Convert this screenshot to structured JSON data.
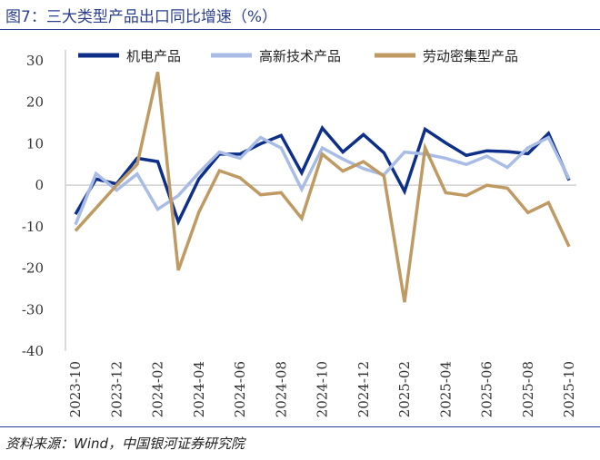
{
  "title": "图7：三大类型产品出口同比增速（%）",
  "source": "资料来源：Wind，中国银河证券研究院",
  "chart_data": {
    "type": "line",
    "title": "图7：三大类型产品出口同比增速（%）",
    "xlabel": "",
    "ylabel": "",
    "ylim": [
      -40,
      30
    ],
    "yticks": [
      30,
      20,
      10,
      0,
      -10,
      -20,
      -30,
      -40
    ],
    "x": [
      "2023-10",
      "2023-11",
      "2023-12",
      "2024-01",
      "2024-02",
      "2024-03",
      "2024-04",
      "2024-05",
      "2024-06",
      "2024-07",
      "2024-08",
      "2024-09",
      "2024-10",
      "2024-11",
      "2024-12",
      "2025-01",
      "2025-02",
      "2025-03",
      "2025-04",
      "2025-05",
      "2025-06",
      "2025-07",
      "2025-08",
      "2025-09",
      "2025-10"
    ],
    "xtick_labels": [
      "2023-10",
      "2023-12",
      "2024-02",
      "2024-04",
      "2024-06",
      "2024-08",
      "2024-10",
      "2024-12",
      "2025-02",
      "2025-04",
      "2025-06",
      "2025-08",
      "2025-10"
    ],
    "legend": "top",
    "grid": false,
    "series": [
      {
        "name": "机电产品",
        "color": "#0d2f8a",
        "values": [
          -7,
          1.5,
          0.3,
          6.5,
          5.7,
          -8.8,
          1.5,
          7.5,
          7.5,
          10,
          12,
          3,
          13.8,
          8,
          12.2,
          7.8,
          -1.5,
          13.5,
          10.2,
          7.2,
          8.3,
          8.1,
          7.6,
          12.5,
          1.2
        ]
      },
      {
        "name": "高新技术产品",
        "color": "#a9bce6",
        "values": [
          -9.5,
          2.8,
          -1.2,
          2.7,
          -5.8,
          -2.5,
          3,
          8,
          6.5,
          11.5,
          9,
          -1,
          9,
          6.3,
          4,
          2.5,
          8,
          7.5,
          6.5,
          5,
          7,
          4.3,
          9,
          11.5,
          1.5
        ]
      },
      {
        "name": "劳动密集型产品",
        "color": "#bf9a62",
        "values": [
          -11,
          -5.5,
          0,
          5,
          27.3,
          -20.5,
          -6.5,
          3.5,
          1.8,
          -2.3,
          -1.8,
          -8,
          7.5,
          3.4,
          5.7,
          2.2,
          -28.2,
          9,
          -1.8,
          -2.5,
          0,
          -0.7,
          -6.6,
          -4.2,
          -14.8
        ]
      }
    ]
  }
}
